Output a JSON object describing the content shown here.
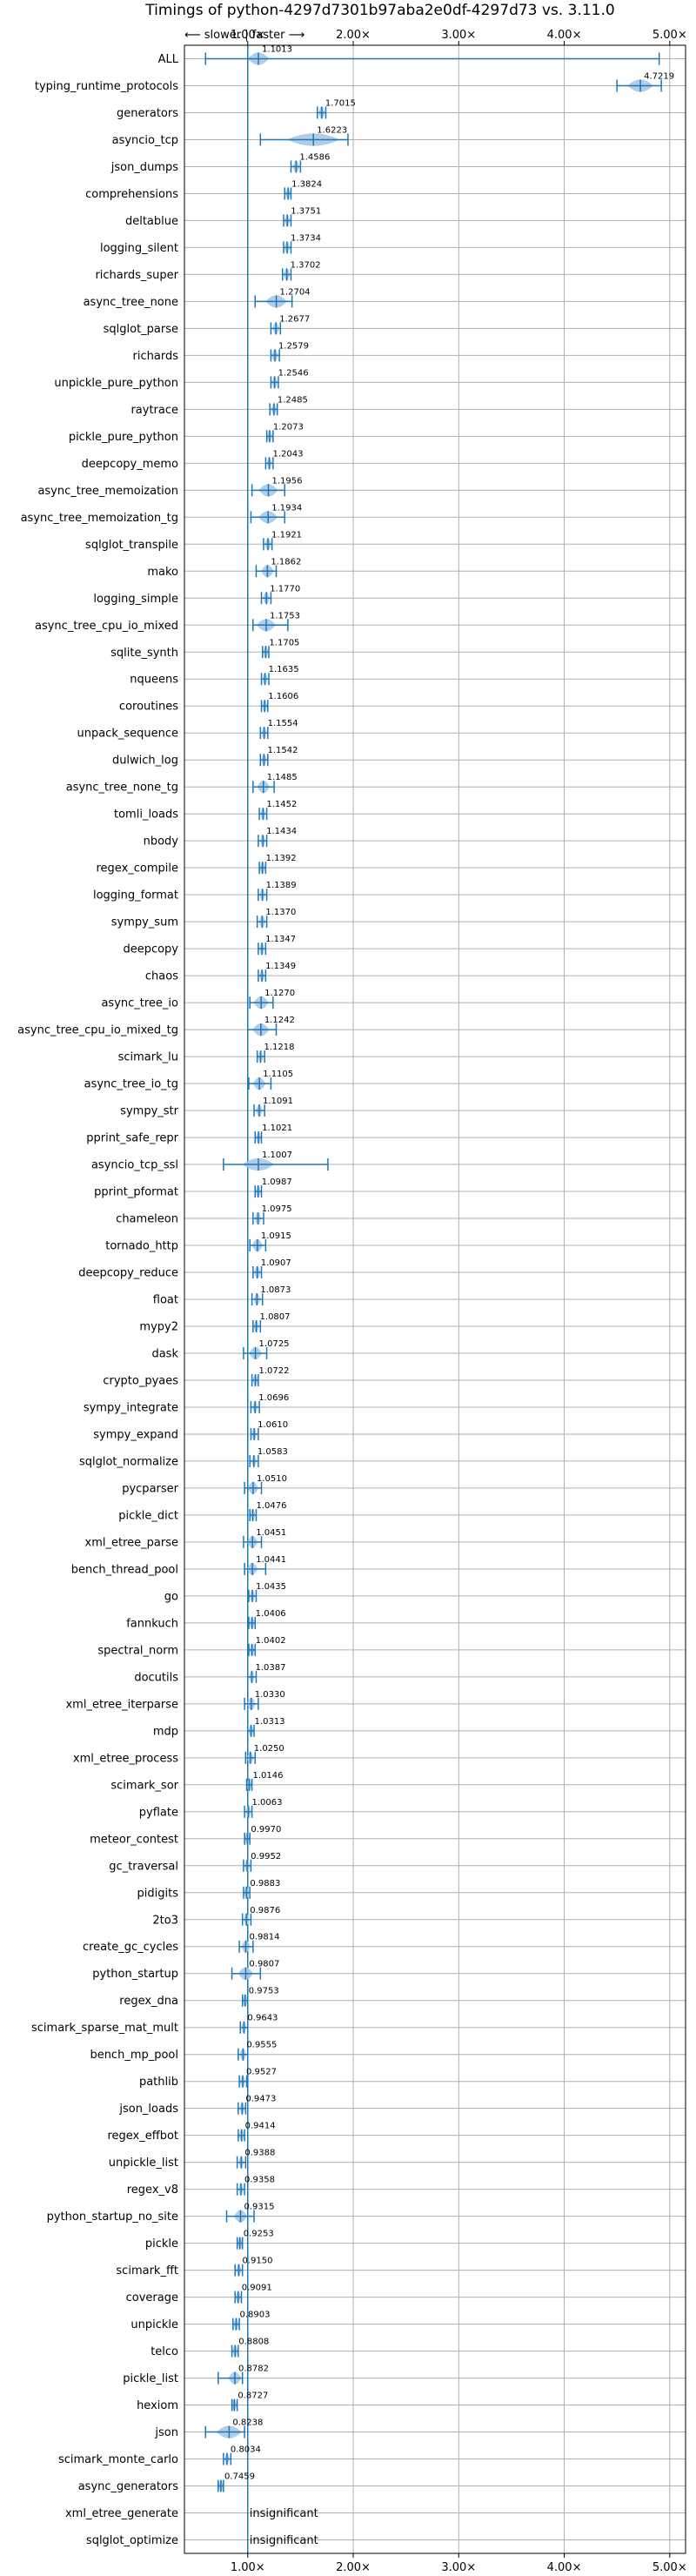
{
  "chart_data": {
    "type": "violin",
    "title": "Timings of python-4297d7301b97aba2e0df-4297d73 vs. 3.11.0",
    "direction_annotation": "⟵ slower | faster ⟶",
    "x_ticks": [
      {
        "value": 1.0,
        "label": "1.00×"
      },
      {
        "value": 2.0,
        "label": "2.00×"
      },
      {
        "value": 3.0,
        "label": "3.00×"
      },
      {
        "value": 4.0,
        "label": "4.00×"
      },
      {
        "value": 5.0,
        "label": "5.00×"
      }
    ],
    "xlim": [
      0.4,
      5.15
    ],
    "grid": true,
    "colors": {
      "violin": "#a9c8e6",
      "whisker": "#1f77b4",
      "median_accent": "#d62728",
      "grid": "#b0b0b0"
    },
    "benchmarks": [
      {
        "name": "ALL",
        "value": 1.1013,
        "label": "1.1013",
        "lo": 0.6,
        "hi": 4.9,
        "spread": 0.1
      },
      {
        "name": "typing_runtime_protocols",
        "value": 4.7219,
        "label": "4.7219",
        "lo": 4.5,
        "hi": 4.92,
        "spread": 0.12
      },
      {
        "name": "generators",
        "value": 1.7015,
        "label": "1.7015",
        "lo": 1.66,
        "hi": 1.74,
        "spread": 0.03
      },
      {
        "name": "asyncio_tcp",
        "value": 1.6223,
        "label": "1.6223",
        "lo": 1.12,
        "hi": 1.95,
        "spread": 0.25
      },
      {
        "name": "json_dumps",
        "value": 1.4586,
        "label": "1.4586",
        "lo": 1.41,
        "hi": 1.5,
        "spread": 0.03
      },
      {
        "name": "comprehensions",
        "value": 1.3824,
        "label": "1.3824",
        "lo": 1.35,
        "hi": 1.41,
        "spread": 0.02
      },
      {
        "name": "deltablue",
        "value": 1.3751,
        "label": "1.3751",
        "lo": 1.34,
        "hi": 1.41,
        "spread": 0.02
      },
      {
        "name": "logging_silent",
        "value": 1.3734,
        "label": "1.3734",
        "lo": 1.34,
        "hi": 1.41,
        "spread": 0.02
      },
      {
        "name": "richards_super",
        "value": 1.3702,
        "label": "1.3702",
        "lo": 1.33,
        "hi": 1.41,
        "spread": 0.03
      },
      {
        "name": "async_tree_none",
        "value": 1.2704,
        "label": "1.2704",
        "lo": 1.07,
        "hi": 1.42,
        "spread": 0.1
      },
      {
        "name": "sqlglot_parse",
        "value": 1.2677,
        "label": "1.2677",
        "lo": 1.22,
        "hi": 1.31,
        "spread": 0.03
      },
      {
        "name": "richards",
        "value": 1.2579,
        "label": "1.2579",
        "lo": 1.22,
        "hi": 1.3,
        "spread": 0.03
      },
      {
        "name": "unpickle_pure_python",
        "value": 1.2546,
        "label": "1.2546",
        "lo": 1.22,
        "hi": 1.29,
        "spread": 0.02
      },
      {
        "name": "raytrace",
        "value": 1.2485,
        "label": "1.2485",
        "lo": 1.21,
        "hi": 1.28,
        "spread": 0.02
      },
      {
        "name": "pickle_pure_python",
        "value": 1.2073,
        "label": "1.2073",
        "lo": 1.18,
        "hi": 1.24,
        "spread": 0.02
      },
      {
        "name": "deepcopy_memo",
        "value": 1.2043,
        "label": "1.2043",
        "lo": 1.17,
        "hi": 1.24,
        "spread": 0.02
      },
      {
        "name": "async_tree_memoization",
        "value": 1.1956,
        "label": "1.1956",
        "lo": 1.04,
        "hi": 1.35,
        "spread": 0.09
      },
      {
        "name": "async_tree_memoization_tg",
        "value": 1.1934,
        "label": "1.1934",
        "lo": 1.03,
        "hi": 1.35,
        "spread": 0.09
      },
      {
        "name": "sqlglot_transpile",
        "value": 1.1921,
        "label": "1.1921",
        "lo": 1.15,
        "hi": 1.23,
        "spread": 0.03
      },
      {
        "name": "mako",
        "value": 1.1862,
        "label": "1.1862",
        "lo": 1.08,
        "hi": 1.27,
        "spread": 0.06
      },
      {
        "name": "logging_simple",
        "value": 1.177,
        "label": "1.1770",
        "lo": 1.13,
        "hi": 1.22,
        "spread": 0.03
      },
      {
        "name": "async_tree_cpu_io_mixed",
        "value": 1.1753,
        "label": "1.1753",
        "lo": 1.05,
        "hi": 1.38,
        "spread": 0.09
      },
      {
        "name": "sqlite_synth",
        "value": 1.1705,
        "label": "1.1705",
        "lo": 1.14,
        "hi": 1.2,
        "spread": 0.02
      },
      {
        "name": "nqueens",
        "value": 1.1635,
        "label": "1.1635",
        "lo": 1.13,
        "hi": 1.2,
        "spread": 0.02
      },
      {
        "name": "coroutines",
        "value": 1.1606,
        "label": "1.1606",
        "lo": 1.13,
        "hi": 1.19,
        "spread": 0.02
      },
      {
        "name": "unpack_sequence",
        "value": 1.1554,
        "label": "1.1554",
        "lo": 1.12,
        "hi": 1.19,
        "spread": 0.02
      },
      {
        "name": "dulwich_log",
        "value": 1.1542,
        "label": "1.1542",
        "lo": 1.12,
        "hi": 1.19,
        "spread": 0.02
      },
      {
        "name": "async_tree_none_tg",
        "value": 1.1485,
        "label": "1.1485",
        "lo": 1.05,
        "hi": 1.25,
        "spread": 0.06
      },
      {
        "name": "tomli_loads",
        "value": 1.1452,
        "label": "1.1452",
        "lo": 1.11,
        "hi": 1.18,
        "spread": 0.02
      },
      {
        "name": "nbody",
        "value": 1.1434,
        "label": "1.1434",
        "lo": 1.1,
        "hi": 1.18,
        "spread": 0.02
      },
      {
        "name": "regex_compile",
        "value": 1.1392,
        "label": "1.1392",
        "lo": 1.11,
        "hi": 1.17,
        "spread": 0.02
      },
      {
        "name": "logging_format",
        "value": 1.1389,
        "label": "1.1389",
        "lo": 1.1,
        "hi": 1.18,
        "spread": 0.02
      },
      {
        "name": "sympy_sum",
        "value": 1.137,
        "label": "1.1370",
        "lo": 1.09,
        "hi": 1.18,
        "spread": 0.03
      },
      {
        "name": "deepcopy",
        "value": 1.1347,
        "label": "1.1347",
        "lo": 1.1,
        "hi": 1.17,
        "spread": 0.02
      },
      {
        "name": "chaos",
        "value": 1.1349,
        "label": "1.1349",
        "lo": 1.1,
        "hi": 1.17,
        "spread": 0.02
      },
      {
        "name": "async_tree_io",
        "value": 1.127,
        "label": "1.1270",
        "lo": 1.02,
        "hi": 1.24,
        "spread": 0.07
      },
      {
        "name": "async_tree_cpu_io_mixed_tg",
        "value": 1.1242,
        "label": "1.1242",
        "lo": 1.0,
        "hi": 1.27,
        "spread": 0.08
      },
      {
        "name": "scimark_lu",
        "value": 1.1218,
        "label": "1.1218",
        "lo": 1.09,
        "hi": 1.16,
        "spread": 0.02
      },
      {
        "name": "async_tree_io_tg",
        "value": 1.1105,
        "label": "1.1105",
        "lo": 1.01,
        "hi": 1.22,
        "spread": 0.06
      },
      {
        "name": "sympy_str",
        "value": 1.1091,
        "label": "1.1091",
        "lo": 1.06,
        "hi": 1.16,
        "spread": 0.03
      },
      {
        "name": "pprint_safe_repr",
        "value": 1.1021,
        "label": "1.1021",
        "lo": 1.07,
        "hi": 1.13,
        "spread": 0.02
      },
      {
        "name": "asyncio_tcp_ssl",
        "value": 1.1007,
        "label": "1.1007",
        "lo": 0.77,
        "hi": 1.76,
        "spread": 0.15
      },
      {
        "name": "pprint_pformat",
        "value": 1.0987,
        "label": "1.0987",
        "lo": 1.07,
        "hi": 1.13,
        "spread": 0.02
      },
      {
        "name": "chameleon",
        "value": 1.0975,
        "label": "1.0975",
        "lo": 1.05,
        "hi": 1.15,
        "spread": 0.03
      },
      {
        "name": "tornado_http",
        "value": 1.0915,
        "label": "1.0915",
        "lo": 1.02,
        "hi": 1.17,
        "spread": 0.05
      },
      {
        "name": "deepcopy_reduce",
        "value": 1.0907,
        "label": "1.0907",
        "lo": 1.05,
        "hi": 1.13,
        "spread": 0.03
      },
      {
        "name": "float",
        "value": 1.0873,
        "label": "1.0873",
        "lo": 1.04,
        "hi": 1.14,
        "spread": 0.03
      },
      {
        "name": "mypy2",
        "value": 1.0807,
        "label": "1.0807",
        "lo": 1.05,
        "hi": 1.12,
        "spread": 0.02
      },
      {
        "name": "dask",
        "value": 1.0725,
        "label": "1.0725",
        "lo": 0.96,
        "hi": 1.18,
        "spread": 0.06
      },
      {
        "name": "crypto_pyaes",
        "value": 1.0722,
        "label": "1.0722",
        "lo": 1.04,
        "hi": 1.1,
        "spread": 0.02
      },
      {
        "name": "sympy_integrate",
        "value": 1.0696,
        "label": "1.0696",
        "lo": 1.03,
        "hi": 1.11,
        "spread": 0.02
      },
      {
        "name": "sympy_expand",
        "value": 1.061,
        "label": "1.0610",
        "lo": 1.03,
        "hi": 1.1,
        "spread": 0.02
      },
      {
        "name": "sqlglot_normalize",
        "value": 1.0583,
        "label": "1.0583",
        "lo": 1.02,
        "hi": 1.1,
        "spread": 0.02
      },
      {
        "name": "pycparser",
        "value": 1.051,
        "label": "1.0510",
        "lo": 0.97,
        "hi": 1.13,
        "spread": 0.05
      },
      {
        "name": "pickle_dict",
        "value": 1.0476,
        "label": "1.0476",
        "lo": 1.02,
        "hi": 1.08,
        "spread": 0.02
      },
      {
        "name": "xml_etree_parse",
        "value": 1.0451,
        "label": "1.0451",
        "lo": 0.96,
        "hi": 1.13,
        "spread": 0.05
      },
      {
        "name": "bench_thread_pool",
        "value": 1.0441,
        "label": "1.0441",
        "lo": 0.97,
        "hi": 1.17,
        "spread": 0.05
      },
      {
        "name": "go",
        "value": 1.0435,
        "label": "1.0435",
        "lo": 1.01,
        "hi": 1.08,
        "spread": 0.02
      },
      {
        "name": "fannkuch",
        "value": 1.0406,
        "label": "1.0406",
        "lo": 1.01,
        "hi": 1.07,
        "spread": 0.02
      },
      {
        "name": "spectral_norm",
        "value": 1.0402,
        "label": "1.0402",
        "lo": 1.01,
        "hi": 1.07,
        "spread": 0.02
      },
      {
        "name": "docutils",
        "value": 1.0387,
        "label": "1.0387",
        "lo": 1.0,
        "hi": 1.08,
        "spread": 0.02
      },
      {
        "name": "xml_etree_iterparse",
        "value": 1.033,
        "label": "1.0330",
        "lo": 0.97,
        "hi": 1.1,
        "spread": 0.04
      },
      {
        "name": "mdp",
        "value": 1.0313,
        "label": "1.0313",
        "lo": 1.0,
        "hi": 1.06,
        "spread": 0.02
      },
      {
        "name": "xml_etree_process",
        "value": 1.025,
        "label": "1.0250",
        "lo": 0.98,
        "hi": 1.07,
        "spread": 0.03
      },
      {
        "name": "scimark_sor",
        "value": 1.0146,
        "label": "1.0146",
        "lo": 0.99,
        "hi": 1.04,
        "spread": 0.02
      },
      {
        "name": "pyflate",
        "value": 1.0063,
        "label": "1.0063",
        "lo": 0.97,
        "hi": 1.04,
        "spread": 0.02
      },
      {
        "name": "meteor_contest",
        "value": 0.997,
        "label": "0.9970",
        "lo": 0.97,
        "hi": 1.02,
        "spread": 0.02
      },
      {
        "name": "gc_traversal",
        "value": 0.9952,
        "label": "0.9952",
        "lo": 0.96,
        "hi": 1.03,
        "spread": 0.02
      },
      {
        "name": "pidigits",
        "value": 0.9883,
        "label": "0.9883",
        "lo": 0.96,
        "hi": 1.02,
        "spread": 0.02
      },
      {
        "name": "2to3",
        "value": 0.9876,
        "label": "0.9876",
        "lo": 0.95,
        "hi": 1.03,
        "spread": 0.02
      },
      {
        "name": "create_gc_cycles",
        "value": 0.9814,
        "label": "0.9814",
        "lo": 0.92,
        "hi": 1.05,
        "spread": 0.04
      },
      {
        "name": "python_startup",
        "value": 0.9807,
        "label": "0.9807",
        "lo": 0.85,
        "hi": 1.12,
        "spread": 0.07
      },
      {
        "name": "regex_dna",
        "value": 0.9753,
        "label": "0.9753",
        "lo": 0.95,
        "hi": 1.0,
        "spread": 0.02
      },
      {
        "name": "scimark_sparse_mat_mult",
        "value": 0.9643,
        "label": "0.9643",
        "lo": 0.93,
        "hi": 1.0,
        "spread": 0.02
      },
      {
        "name": "bench_mp_pool",
        "value": 0.9555,
        "label": "0.9555",
        "lo": 0.91,
        "hi": 1.0,
        "spread": 0.03
      },
      {
        "name": "pathlib",
        "value": 0.9527,
        "label": "0.9527",
        "lo": 0.92,
        "hi": 0.99,
        "spread": 0.02
      },
      {
        "name": "json_loads",
        "value": 0.9473,
        "label": "0.9473",
        "lo": 0.91,
        "hi": 0.98,
        "spread": 0.02
      },
      {
        "name": "regex_effbot",
        "value": 0.9414,
        "label": "0.9414",
        "lo": 0.91,
        "hi": 0.97,
        "spread": 0.02
      },
      {
        "name": "unpickle_list",
        "value": 0.9388,
        "label": "0.9388",
        "lo": 0.9,
        "hi": 0.98,
        "spread": 0.02
      },
      {
        "name": "regex_v8",
        "value": 0.9358,
        "label": "0.9358",
        "lo": 0.9,
        "hi": 0.97,
        "spread": 0.02
      },
      {
        "name": "python_startup_no_site",
        "value": 0.9315,
        "label": "0.9315",
        "lo": 0.8,
        "hi": 1.06,
        "spread": 0.06
      },
      {
        "name": "pickle",
        "value": 0.9253,
        "label": "0.9253",
        "lo": 0.9,
        "hi": 0.95,
        "spread": 0.02
      },
      {
        "name": "scimark_fft",
        "value": 0.915,
        "label": "0.9150",
        "lo": 0.88,
        "hi": 0.95,
        "spread": 0.02
      },
      {
        "name": "coverage",
        "value": 0.9091,
        "label": "0.9091",
        "lo": 0.88,
        "hi": 0.94,
        "spread": 0.02
      },
      {
        "name": "unpickle",
        "value": 0.8903,
        "label": "0.8903",
        "lo": 0.86,
        "hi": 0.92,
        "spread": 0.02
      },
      {
        "name": "telco",
        "value": 0.8808,
        "label": "0.8808",
        "lo": 0.85,
        "hi": 0.91,
        "spread": 0.02
      },
      {
        "name": "pickle_list",
        "value": 0.8782,
        "label": "0.8782",
        "lo": 0.72,
        "hi": 0.95,
        "spread": 0.06
      },
      {
        "name": "hexiom",
        "value": 0.8727,
        "label": "0.8727",
        "lo": 0.85,
        "hi": 0.9,
        "spread": 0.02
      },
      {
        "name": "json",
        "value": 0.8238,
        "label": "0.8238",
        "lo": 0.6,
        "hi": 0.97,
        "spread": 0.12
      },
      {
        "name": "scimark_monte_carlo",
        "value": 0.8034,
        "label": "0.8034",
        "lo": 0.77,
        "hi": 0.84,
        "spread": 0.02
      },
      {
        "name": "async_generators",
        "value": 0.7459,
        "label": "0.7459",
        "lo": 0.72,
        "hi": 0.77,
        "spread": 0.02
      },
      {
        "name": "xml_etree_generate",
        "value": null,
        "label": "insignificant"
      },
      {
        "name": "sqlglot_optimize",
        "value": null,
        "label": "insignificant"
      }
    ]
  }
}
